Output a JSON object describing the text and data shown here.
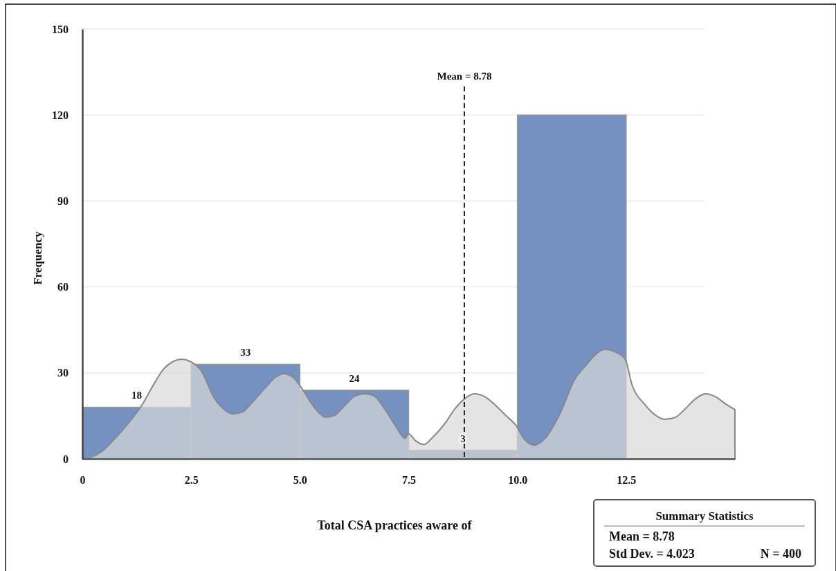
{
  "chart_data": {
    "type": "histogram",
    "xlabel": "Total CSA practices aware of",
    "ylabel": "Frequency",
    "bins": [
      0,
      2.5,
      5,
      7.5,
      10,
      12.5
    ],
    "values": [
      18,
      33,
      24,
      3,
      120
    ],
    "color": "#7491c0",
    "value_labels": [
      "18",
      "33",
      "24",
      "3",
      null
    ],
    "series": [
      {
        "type": "area",
        "color": "#d9d9d9",
        "x": [
          0,
          0.18,
          0.46,
          0.73,
          1.05,
          1.37,
          1.64,
          1.85,
          2.09,
          2.28,
          2.48,
          2.72,
          3.04,
          3.28,
          3.47,
          3.68,
          3.92,
          4.24,
          4.44,
          4.63,
          4.84,
          5.03,
          5.35,
          5.59,
          5.8,
          6.04,
          6.27,
          6.5,
          6.7,
          6.94,
          7.18,
          7.42,
          7.5,
          7.66,
          7.85,
          8.05,
          8.33,
          8.57,
          8.77,
          9.01,
          9.25,
          9.49,
          9.73,
          9.97,
          10.16,
          10.4,
          10.64,
          10.96,
          11.32,
          11.59,
          11.8,
          12.01,
          12.23,
          12.47,
          12.64,
          12.91,
          13.18,
          13.39,
          13.63,
          13.84,
          14.08,
          14.32,
          14.55,
          14.79,
          15
        ],
        "values": [
          0,
          0.5,
          2.7,
          6.8,
          12.3,
          18.8,
          26,
          31,
          34,
          34.8,
          34,
          31,
          21,
          17,
          15.7,
          16.4,
          20,
          25.4,
          28.5,
          29.7,
          28.5,
          24.9,
          17.6,
          14.5,
          15.2,
          18.8,
          22,
          22.7,
          22,
          17.6,
          12,
          7.2,
          8.7,
          6.3,
          5,
          7.5,
          12.3,
          17.6,
          20.8,
          22.7,
          21.7,
          18.8,
          15.2,
          11.6,
          6.8,
          4.8,
          7.2,
          15.2,
          27.8,
          32.9,
          36.5,
          38.2,
          37.4,
          35,
          25.6,
          19.3,
          15.2,
          13.8,
          14.5,
          17.2,
          20.8,
          22.7,
          21.7,
          19.1,
          17.2
        ]
      }
    ],
    "xlim": [
      0,
      15
    ],
    "xticks": [
      0,
      2.5,
      {
        "value": 5,
        "label": "5.0"
      },
      7.5,
      {
        "value": 10,
        "label": "10.0"
      },
      12.5
    ],
    "ylim": [
      0,
      150
    ],
    "yticks": [
      0,
      30,
      60,
      90,
      120,
      150
    ],
    "grid": "y",
    "ref_lines": [
      {
        "axis": "x",
        "value": 8.78,
        "label": "Mean = 8.78",
        "line_style": "dashed"
      }
    ],
    "annotations": [
      "Summary Statistics",
      "Mean = 8.78",
      "Std Dev. = 4.023",
      "N = 400"
    ]
  }
}
